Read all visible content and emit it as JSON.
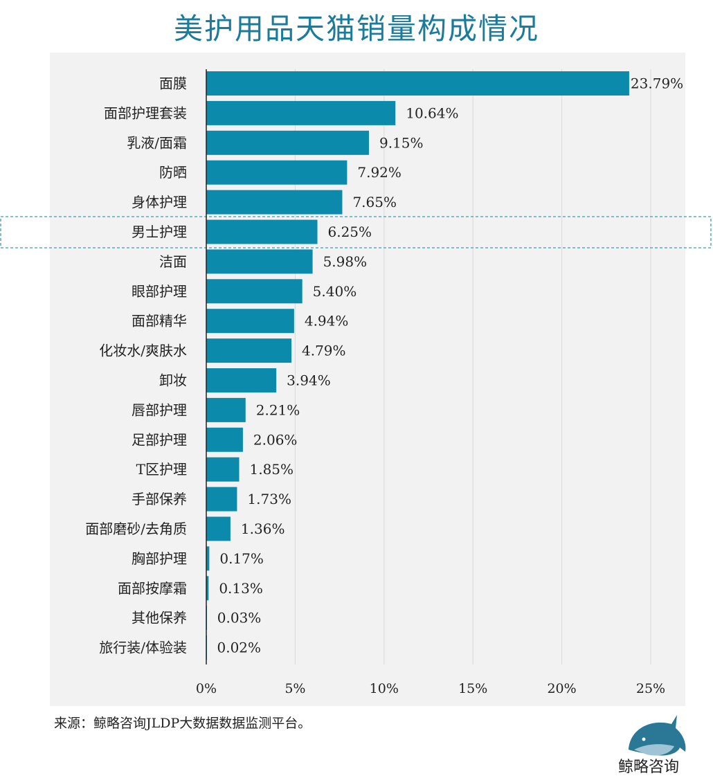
{
  "title": "美护用品天猫销量构成情况",
  "source": "来源：鲸略咨询JLDP大数据数据监测平台。",
  "logo_text": "鲸略咨询",
  "colors": {
    "bar": "#0b8aac",
    "title": "#1b7b9a",
    "plot_bg": "#f2f2f2",
    "highlight": "#3a9ab5"
  },
  "chart_data": {
    "type": "bar",
    "orientation": "horizontal",
    "categories": [
      "面膜",
      "面部护理套装",
      "乳液/面霜",
      "防晒",
      "身体护理",
      "男士护理",
      "洁面",
      "眼部护理",
      "面部精华",
      "化妆水/爽肤水",
      "卸妆",
      "唇部护理",
      "足部护理",
      "T区护理",
      "手部保养",
      "面部磨砂/去角质",
      "胸部护理",
      "面部按摩霜",
      "其他保养",
      "旅行装/体验装"
    ],
    "values": [
      23.79,
      10.64,
      9.15,
      7.92,
      7.65,
      6.25,
      5.98,
      5.4,
      4.94,
      4.79,
      3.94,
      2.21,
      2.06,
      1.85,
      1.73,
      1.36,
      0.17,
      0.13,
      0.03,
      0.02
    ],
    "data_labels": [
      "23.79%",
      "10.64%",
      "9.15%",
      "7.92%",
      "7.65%",
      "6.25%",
      "5.98%",
      "5.40%",
      "4.94%",
      "4.79%",
      "3.94%",
      "2.21%",
      "2.06%",
      "1.85%",
      "1.73%",
      "1.36%",
      "0.17%",
      "0.13%",
      "0.03%",
      "0.02%"
    ],
    "xlim": [
      0,
      25
    ],
    "xticks": [
      "0%",
      "5%",
      "10%",
      "15%",
      "20%",
      "25%"
    ],
    "grid": true,
    "highlighted_category": "男士护理"
  }
}
